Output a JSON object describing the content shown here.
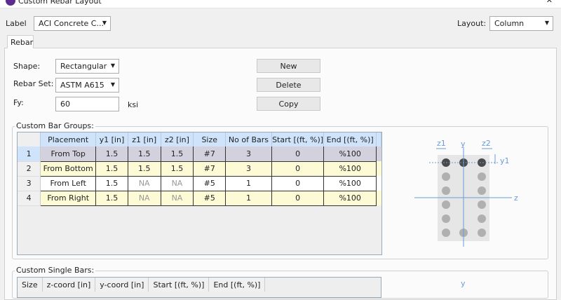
{
  "window": {
    "title": "Custom Rebar Layout",
    "close": "✕"
  },
  "label": {
    "caption": "Label",
    "value": "ACI Concrete C..."
  },
  "layout": {
    "caption": "Layout:",
    "value": "Column"
  },
  "tabs": [
    {
      "label": "Rebar"
    }
  ],
  "form": {
    "shape_label": "Shape:",
    "shape_value": "Rectangular",
    "rebarset_label": "Rebar Set:",
    "rebarset_value": "ASTM A615",
    "fy_label": "Fy:",
    "fy_value": "60",
    "fy_unit": "ksi"
  },
  "buttons": {
    "new": "New",
    "delete": "Delete",
    "copy": "Copy"
  },
  "bar_groups": {
    "title": "Custom Bar Groups:",
    "columns": [
      "Placement",
      "y1 [in]",
      "z1 [in]",
      "z2 [in]",
      "Size",
      "No of Bars",
      "Start [(ft, %)]",
      "End [(ft, %)]"
    ],
    "rows": [
      [
        "1",
        "From Top",
        "1.5",
        "1.5",
        "1.5",
        "#7",
        "3",
        "0",
        "%100"
      ],
      [
        "2",
        "From Bottom",
        "1.5",
        "1.5",
        "1.5",
        "#7",
        "3",
        "0",
        "%100"
      ],
      [
        "3",
        "From Left",
        "1.5",
        "NA",
        "NA",
        "#5",
        "1",
        "0",
        "%100"
      ],
      [
        "4",
        "From Right",
        "1.5",
        "NA",
        "NA",
        "#5",
        "1",
        "0",
        "%100"
      ]
    ]
  },
  "diagram": {
    "labels": {
      "z1": "z1",
      "z2": "z2",
      "y": "y",
      "y1": "y1",
      "z": "z"
    },
    "colors": {
      "axis": "#6a9bd8",
      "section": "#e6e6e6",
      "bar_active": "#4a4a4a",
      "bar": "#b0b0b0"
    }
  },
  "single_bars": {
    "title": "Custom Single Bars:",
    "columns": [
      "Size",
      "z-coord [in]",
      "y-coord [in]",
      "Start [(ft, %)]",
      "End [(ft, %)]"
    ],
    "diagram_label": "y"
  }
}
